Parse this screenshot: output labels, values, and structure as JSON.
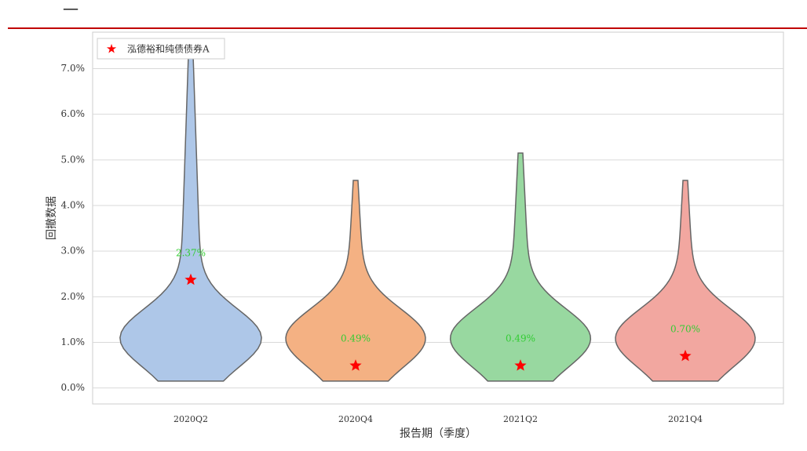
{
  "header": {
    "title": "一"
  },
  "chart_data": {
    "type": "violin",
    "y_label": "回撤数据",
    "x_label": "报告期（季度）",
    "categories": [
      "2020Q2",
      "2020Q4",
      "2021Q2",
      "2021Q4"
    ],
    "max": [
      7.3,
      4.55,
      5.15,
      4.55
    ],
    "colors": [
      "#aec7e8",
      "#f4b183",
      "#98d8a0",
      "#f2a7a0"
    ],
    "series": [
      {
        "name": "泓德裕和纯债债券A",
        "color": "#ff0000",
        "values": [
          2.37,
          0.49,
          0.49,
          0.7
        ],
        "value_labels": [
          "2.37%",
          "0.49%",
          "0.49%",
          "0.70%"
        ]
      }
    ],
    "ylim": [
      -0.35,
      7.8
    ],
    "yticks": [
      {
        "value": 0,
        "label": "0.0%"
      },
      {
        "value": 1,
        "label": "1.0%"
      },
      {
        "value": 2,
        "label": "2.0%"
      },
      {
        "value": 3,
        "label": "3.0%"
      },
      {
        "value": 4,
        "label": "4.0%"
      },
      {
        "value": 5,
        "label": "5.0%"
      },
      {
        "value": 6,
        "label": "6.0%"
      },
      {
        "value": 7,
        "label": "7.0%"
      }
    ],
    "grid": true,
    "legend": "upper left"
  }
}
